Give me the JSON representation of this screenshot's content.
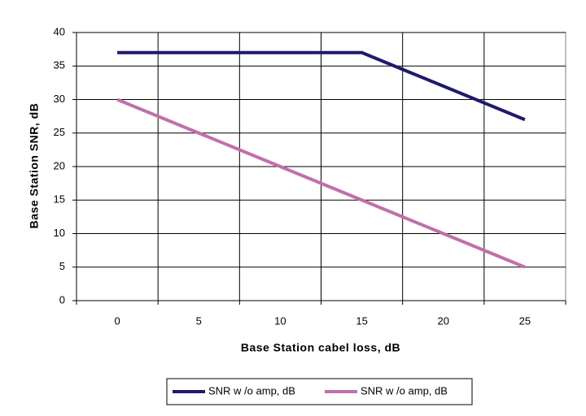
{
  "chart_data": {
    "type": "line",
    "x_label": "Base Station cabel loss, dB",
    "y_label": "Base Station SNR, dB",
    "categories": [
      0,
      5,
      10,
      15,
      20,
      25
    ],
    "series": [
      {
        "name": "SNR w /o amp, dB",
        "color": "#1f1a6b",
        "values": [
          37,
          37,
          37,
          37,
          32,
          27
        ]
      },
      {
        "name": "SNR w /o amp, dB",
        "color": "#c070a8",
        "values": [
          30,
          25,
          20,
          15,
          10,
          5
        ]
      }
    ],
    "ylim": [
      0,
      40
    ],
    "yticks": [
      0,
      5,
      10,
      15,
      20,
      25,
      30,
      35,
      40
    ],
    "grid": true,
    "legend": "bottom"
  }
}
